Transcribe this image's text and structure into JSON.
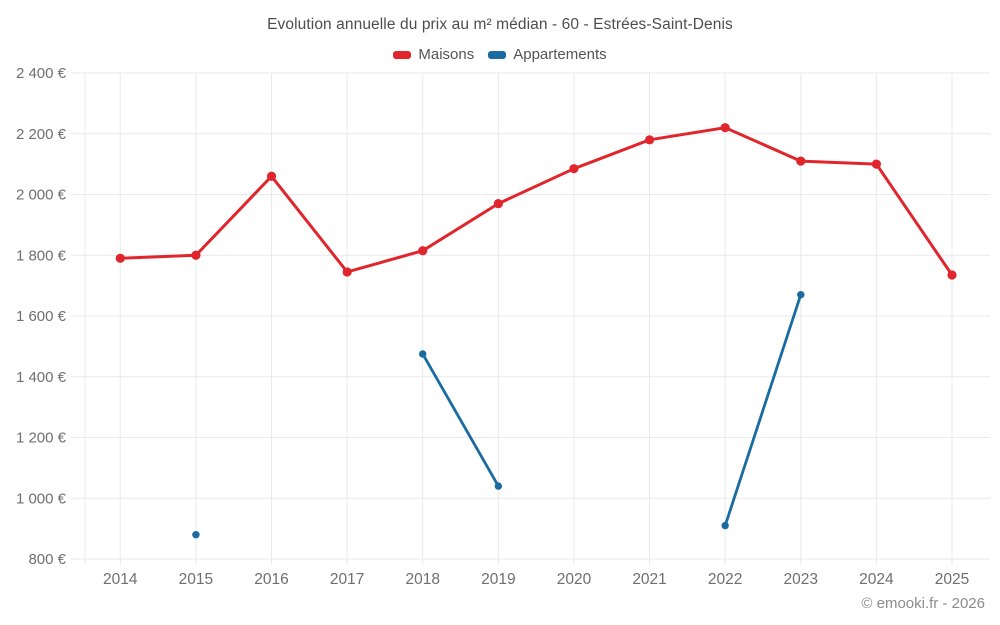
{
  "title": "Evolution annuelle du prix au m² médian - 60 - Estrées-Saint-Denis",
  "footer": "© emooki.fr - 2026",
  "colors": {
    "maisons": "#e0262c",
    "appartements": "#1a6ba0",
    "grid": "#e9e9e9",
    "axis_text": "#6f6f6f",
    "title_text": "#4d4d4d",
    "legend_text": "#555555",
    "footer_text": "#8c8c8c"
  },
  "chart_data": {
    "type": "line",
    "title": "Evolution annuelle du prix au m² médian - 60 - Estrées-Saint-Denis",
    "categories": [
      "2014",
      "2015",
      "2016",
      "2017",
      "2018",
      "2019",
      "2020",
      "2021",
      "2022",
      "2023",
      "2024",
      "2025"
    ],
    "series": [
      {
        "name": "Maisons",
        "color": "#e0262c",
        "values": [
          1790,
          1800,
          2060,
          1745,
          1815,
          1970,
          2085,
          2180,
          2220,
          2110,
          2100,
          1735
        ]
      },
      {
        "name": "Appartements",
        "color": "#1a6ba0",
        "values": [
          null,
          880,
          null,
          null,
          1475,
          1040,
          null,
          null,
          910,
          1670,
          null,
          null
        ]
      }
    ],
    "ylim": [
      800,
      2400
    ],
    "ytick_values": [
      800,
      1000,
      1200,
      1400,
      1600,
      1800,
      2000,
      2200,
      2400
    ],
    "ytick_labels": [
      "800 €",
      "1 000 €",
      "1 200 €",
      "1 400 €",
      "1 600 €",
      "1 800 €",
      "2 000 €",
      "2 200 €",
      "2 400 €"
    ],
    "xlabel": "",
    "ylabel": "",
    "grid": true,
    "legend_position": "top",
    "legend_entries": [
      "Maisons",
      "Appartements"
    ]
  }
}
